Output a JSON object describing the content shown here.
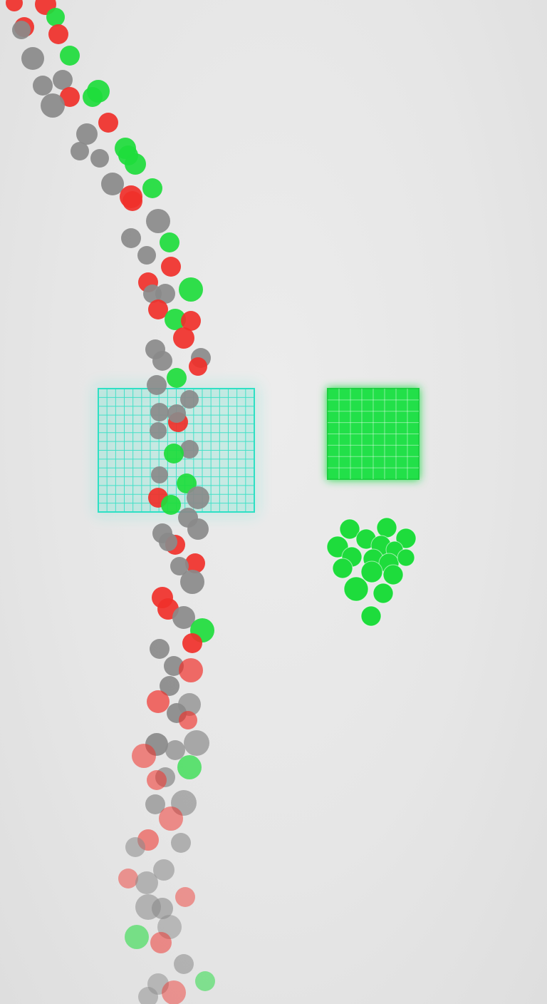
{
  "game": {
    "type": "falling-balls sorting",
    "colors": {
      "background": "#e4e4e4",
      "ball_red": "#f0302a",
      "ball_green": "#1edc3c",
      "ball_gray": "#8a8a8a",
      "scanner_grid": "#2de0c4",
      "collector_grid": "#22e04a",
      "sorted_ball": "#1edc3c"
    },
    "objects": {
      "scanner_gate": {
        "shape": "grid",
        "state": "active",
        "glow": true
      },
      "green_collector": {
        "shape": "grid",
        "fill": "green"
      },
      "sorted_pile": {
        "color": "green",
        "count": 17
      }
    },
    "ball_stream": {
      "direction": "top-to-bottom",
      "colors_present": [
        "red",
        "green",
        "gray"
      ]
    }
  }
}
